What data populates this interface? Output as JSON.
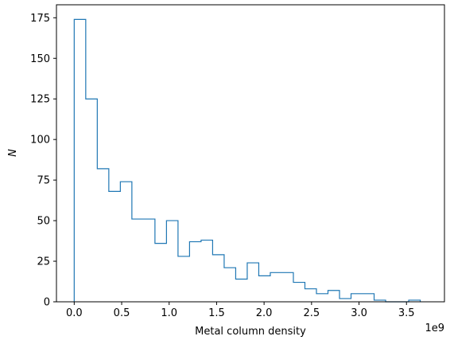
{
  "chart_data": {
    "type": "histogram",
    "style": "step",
    "xlabel": "Metal column density",
    "ylabel": "N",
    "x_offset_text": "1e9",
    "xlim": [
      -0.187,
      3.9
    ],
    "ylim": [
      0,
      183
    ],
    "bin_start": 0.0,
    "bin_width": 0.1215,
    "counts": [
      174,
      125,
      82,
      68,
      74,
      51,
      51,
      36,
      50,
      28,
      37,
      38,
      29,
      21,
      14,
      24,
      16,
      18,
      18,
      12,
      8,
      5,
      7,
      2,
      5,
      5,
      1,
      0,
      0,
      1
    ],
    "x_ticks": [
      "0.0",
      "0.5",
      "1.0",
      "1.5",
      "2.0",
      "2.5",
      "3.0",
      "3.5"
    ],
    "x_tick_values": [
      0.0,
      0.5,
      1.0,
      1.5,
      2.0,
      2.5,
      3.0,
      3.5
    ],
    "y_ticks": [
      "0",
      "25",
      "50",
      "75",
      "100",
      "125",
      "150",
      "175"
    ],
    "y_tick_values": [
      0,
      25,
      50,
      75,
      100,
      125,
      150,
      175
    ],
    "line_color": "#1f77b4",
    "grid": false
  }
}
